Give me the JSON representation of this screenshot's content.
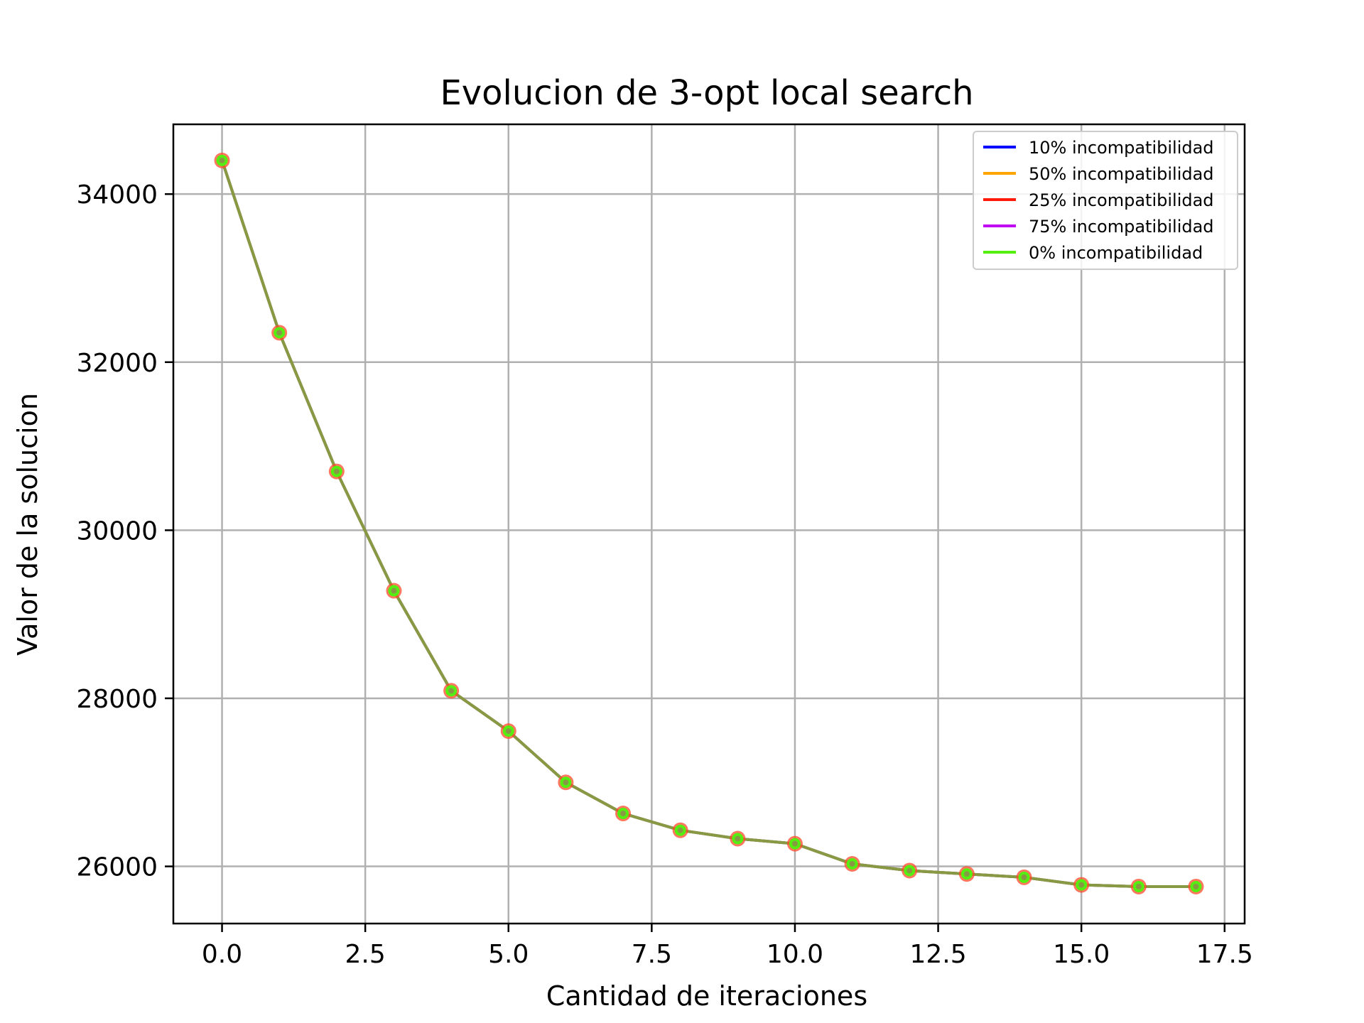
{
  "chart_data": {
    "type": "line",
    "title": "Evolucion de 3-opt local search",
    "xlabel": "Cantidad de iteraciones",
    "ylabel": "Valor de la solucion",
    "xlim": [
      -0.85,
      17.85
    ],
    "ylim": [
      25320,
      34830
    ],
    "xticks": [
      0.0,
      2.5,
      5.0,
      7.5,
      10.0,
      12.5,
      15.0,
      17.5
    ],
    "xtick_labels": [
      "0.0",
      "2.5",
      "5.0",
      "7.5",
      "10.0",
      "12.5",
      "15.0",
      "17.5"
    ],
    "yticks": [
      26000,
      28000,
      30000,
      32000,
      34000
    ],
    "ytick_labels": [
      "26000",
      "28000",
      "30000",
      "32000",
      "34000"
    ],
    "grid": true,
    "legend_position": "top-right",
    "x": [
      0,
      1,
      2,
      3,
      4,
      5,
      6,
      7,
      8,
      9,
      10,
      11,
      12,
      13,
      14,
      15,
      16,
      17
    ],
    "series": [
      {
        "name": "10% incompatibilidad",
        "color": "#0000ff",
        "values": [
          34400,
          32350,
          30700,
          29280,
          28090,
          27610,
          27000,
          26630,
          26430,
          26330,
          26270,
          26030,
          25950,
          25910,
          25870,
          25780,
          25760,
          25760
        ]
      },
      {
        "name": "50% incompatibilidad",
        "color": "#ffa500",
        "values": [
          34400,
          32350,
          30700,
          29280,
          28090,
          27610,
          27000,
          26630,
          26430,
          26330,
          26270,
          26030,
          25950,
          25910,
          25870,
          25780,
          25760,
          25760
        ]
      },
      {
        "name": "25% incompatibilidad",
        "color": "#ff1a0a",
        "values": [
          34400,
          32350,
          30700,
          29280,
          28090,
          27610,
          27000,
          26630,
          26430,
          26330,
          26270,
          26030,
          25950,
          25910,
          25870,
          25780,
          25760,
          25760
        ]
      },
      {
        "name": "75% incompatibilidad",
        "color": "#c000f0",
        "values": [
          34400,
          32350,
          30700,
          29280,
          28090,
          27610,
          27000,
          26630,
          26430,
          26330,
          26270,
          26030,
          25950,
          25910,
          25870,
          25780,
          25760,
          25760
        ]
      },
      {
        "name": "0% incompatibilidad",
        "color": "#55ee11",
        "values": [
          34400,
          32350,
          30700,
          29280,
          28090,
          27610,
          27000,
          26630,
          26430,
          26330,
          26270,
          26030,
          25950,
          25910,
          25870,
          25780,
          25760,
          25760
        ]
      }
    ],
    "visible_line_color": "#889944"
  }
}
